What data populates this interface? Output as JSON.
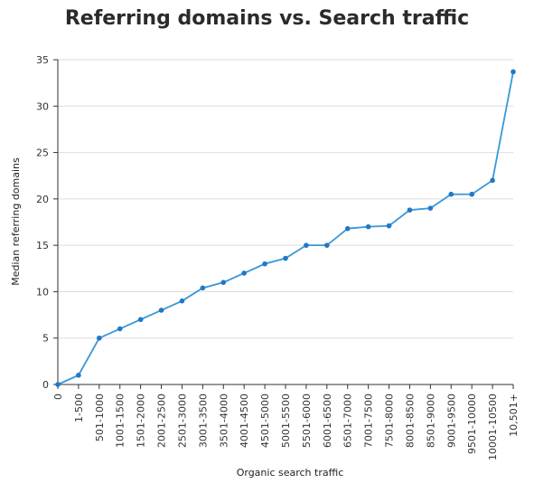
{
  "chart_data": {
    "type": "line",
    "title": "Referring domains vs. Search traffic",
    "xlabel": "Organic search traffic",
    "ylabel": "Median referring domains",
    "ylim": [
      0,
      35
    ],
    "yticks": [
      0,
      5,
      10,
      15,
      20,
      25,
      30,
      35
    ],
    "grid": true,
    "legend": "none",
    "colors": {
      "line": "#3a97d8",
      "marker": "#1f78c8",
      "grid": "#dddddd",
      "axis": "#333333"
    },
    "categories": [
      "0",
      "1-500",
      "501-1000",
      "1001-1500",
      "1501-2000",
      "2001-2500",
      "2501-3000",
      "3001-3500",
      "3501-4000",
      "4001-4500",
      "4501-5000",
      "5001-5500",
      "5501-6000",
      "6001-6500",
      "6501-7000",
      "7001-7500",
      "7501-8000",
      "8001-8500",
      "8501-9000",
      "9001-9500",
      "9501-10000",
      "10001-10500",
      "10,501+"
    ],
    "series": [
      {
        "values": [
          0,
          1,
          5,
          6,
          7,
          8,
          9,
          10.4,
          11,
          12,
          13,
          13.6,
          15,
          15,
          16.8,
          17,
          17.1,
          18.8,
          19,
          20.5,
          20.5,
          22,
          33.7
        ]
      }
    ]
  }
}
